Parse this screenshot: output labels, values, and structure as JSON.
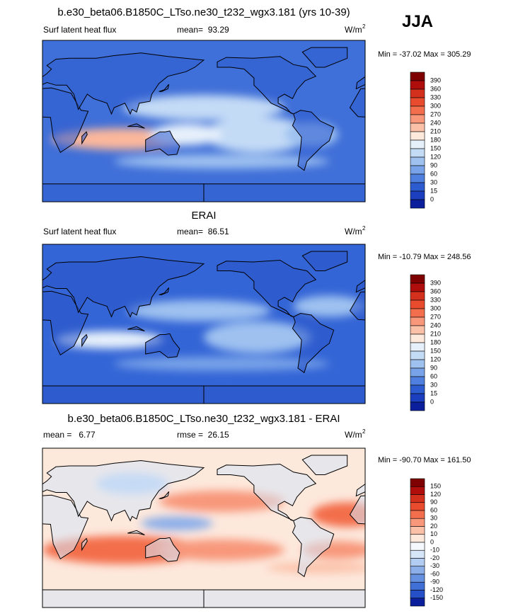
{
  "header": {
    "season": "JJA"
  },
  "panels": [
    {
      "title": "b.e30_beta06.B1850C_LTso.ne30_t232_wgx3.181 (yrs 10-39)",
      "left_label": "Surf latent heat flux",
      "center_label": "mean=  93.29",
      "units": {
        "base": "W/m",
        "sup": "2"
      },
      "minmax": "Min = -37.02 Max = 305.29",
      "colorbar": {
        "levels": [
          390,
          360,
          330,
          300,
          270,
          240,
          210,
          180,
          150,
          120,
          90,
          60,
          30,
          15,
          0
        ],
        "colors": [
          "#7f0000",
          "#b00d0d",
          "#d3301e",
          "#e94b2f",
          "#f36e4c",
          "#f8977a",
          "#fbc1a8",
          "#fde8dc",
          "#e6f0fb",
          "#c4dbf6",
          "#9ec1f0",
          "#78a3e8",
          "#5080df",
          "#2d5bd0",
          "#1b3fbe",
          "#0b1f9c"
        ]
      }
    },
    {
      "title": "ERAI",
      "left_label": "Surf latent heat flux",
      "center_label": "mean=  86.51",
      "units": {
        "base": "W/m",
        "sup": "2"
      },
      "minmax": "Min = -10.79 Max = 248.56",
      "colorbar": {
        "levels": [
          390,
          360,
          330,
          300,
          270,
          240,
          210,
          180,
          150,
          120,
          90,
          60,
          30,
          15,
          0
        ],
        "colors": [
          "#7f0000",
          "#b00d0d",
          "#d3301e",
          "#e94b2f",
          "#f36e4c",
          "#f8977a",
          "#fbc1a8",
          "#fde8dc",
          "#e6f0fb",
          "#c4dbf6",
          "#9ec1f0",
          "#78a3e8",
          "#5080df",
          "#2d5bd0",
          "#1b3fbe",
          "#0b1f9c"
        ]
      }
    },
    {
      "title": "b.e30_beta06.B1850C_LTso.ne30_t232_wgx3.181 - ERAI",
      "left_label": "mean =   6.77",
      "center_label": "rmse =  26.15",
      "units": {
        "base": "W/m",
        "sup": "2"
      },
      "minmax": "Min = -90.70 Max = 161.50",
      "colorbar": {
        "levels": [
          150,
          120,
          90,
          60,
          30,
          20,
          10,
          0,
          -10,
          -20,
          -30,
          -60,
          -90,
          -120,
          -150
        ],
        "colors": [
          "#7f0000",
          "#b00d0d",
          "#d3301e",
          "#e94b2f",
          "#f36e4c",
          "#f8977a",
          "#fbc1a8",
          "#fde8dc",
          "#f5f8fc",
          "#d6e6f8",
          "#b3cdf2",
          "#8caee9",
          "#6690e0",
          "#4070d6",
          "#2550c8",
          "#0b1f9c"
        ]
      }
    }
  ]
}
